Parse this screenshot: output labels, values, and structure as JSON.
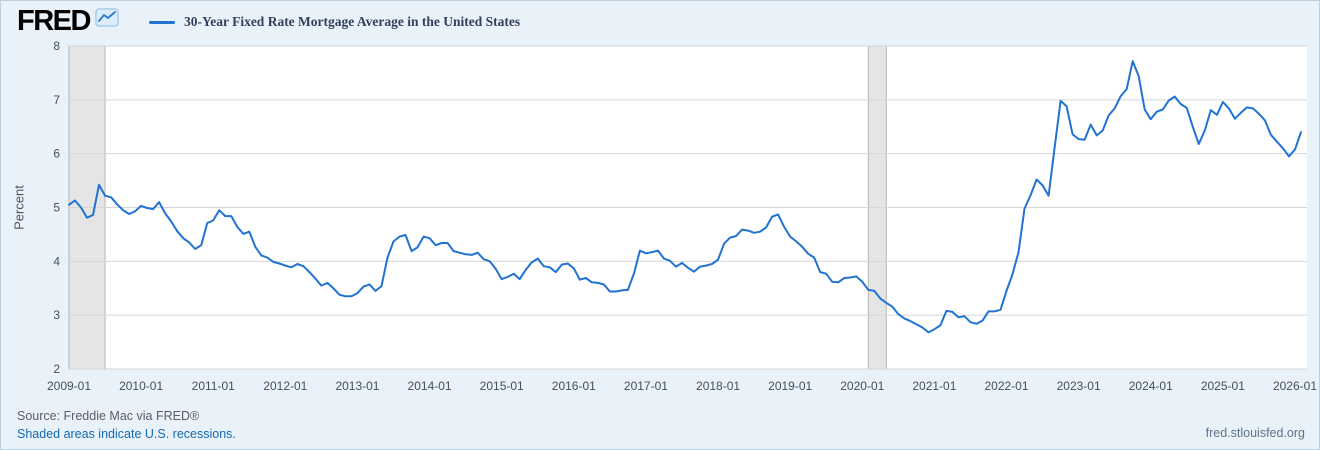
{
  "header": {
    "logo_text": "FRED",
    "logo_icon": "line-chart-icon"
  },
  "chart_data": {
    "type": "line",
    "title": "30-Year Fixed Rate Mortgage Average in the United States",
    "ylabel": "Percent",
    "xlabel": "",
    "ylim": [
      2,
      8
    ],
    "y_ticks": [
      2,
      3,
      4,
      5,
      6,
      7,
      8
    ],
    "x_ticks": [
      "2009-01",
      "2010-01",
      "2011-01",
      "2012-01",
      "2013-01",
      "2014-01",
      "2015-01",
      "2016-01",
      "2017-01",
      "2018-01",
      "2019-01",
      "2020-01",
      "2021-01",
      "2022-01",
      "2023-01",
      "2024-01",
      "2025-01",
      "2026-01"
    ],
    "x_domain": [
      "2009-01",
      "2026-03"
    ],
    "grid": "horizontal",
    "legend_position": "top",
    "line_color": "#2273d1",
    "grid_color": "#d6d6d6",
    "plot_bg": "#ffffff",
    "band_color": "#e5e5e5",
    "band_border": "#b5b5b5",
    "recession_bands": [
      [
        "2009-01",
        "2009-07"
      ],
      [
        "2020-02",
        "2020-05"
      ]
    ],
    "series": [
      {
        "name": "30-Year Fixed Rate Mortgage Average in the United States",
        "unit": "Percent",
        "frequency": "monthly",
        "start": "2009-01",
        "values": [
          5.05,
          5.13,
          5.0,
          4.81,
          4.86,
          5.42,
          5.22,
          5.19,
          5.06,
          4.95,
          4.88,
          4.93,
          5.03,
          4.99,
          4.97,
          5.1,
          4.89,
          4.74,
          4.56,
          4.43,
          4.35,
          4.23,
          4.3,
          4.71,
          4.76,
          4.95,
          4.84,
          4.84,
          4.64,
          4.51,
          4.55,
          4.27,
          4.11,
          4.07,
          3.99,
          3.96,
          3.92,
          3.89,
          3.95,
          3.91,
          3.8,
          3.68,
          3.55,
          3.6,
          3.5,
          3.38,
          3.35,
          3.35,
          3.41,
          3.53,
          3.57,
          3.45,
          3.54,
          4.07,
          4.37,
          4.46,
          4.49,
          4.19,
          4.26,
          4.46,
          4.43,
          4.3,
          4.34,
          4.34,
          4.19,
          4.16,
          4.13,
          4.12,
          4.16,
          4.04,
          4.0,
          3.86,
          3.67,
          3.71,
          3.77,
          3.67,
          3.84,
          3.98,
          4.05,
          3.91,
          3.89,
          3.8,
          3.94,
          3.96,
          3.87,
          3.66,
          3.69,
          3.61,
          3.6,
          3.57,
          3.44,
          3.44,
          3.46,
          3.47,
          3.77,
          4.2,
          4.15,
          4.17,
          4.2,
          4.05,
          4.01,
          3.9,
          3.97,
          3.88,
          3.81,
          3.9,
          3.92,
          3.95,
          4.03,
          4.33,
          4.44,
          4.47,
          4.59,
          4.57,
          4.53,
          4.55,
          4.63,
          4.83,
          4.87,
          4.64,
          4.46,
          4.37,
          4.27,
          4.14,
          4.07,
          3.8,
          3.77,
          3.62,
          3.61,
          3.69,
          3.7,
          3.72,
          3.62,
          3.47,
          3.45,
          3.31,
          3.23,
          3.16,
          3.02,
          2.94,
          2.89,
          2.83,
          2.77,
          2.68,
          2.74,
          2.81,
          3.08,
          3.06,
          2.96,
          2.98,
          2.87,
          2.84,
          2.9,
          3.07,
          3.07,
          3.1,
          3.45,
          3.76,
          4.17,
          4.98,
          5.23,
          5.52,
          5.41,
          5.22,
          6.11,
          6.98,
          6.88,
          6.36,
          6.27,
          6.26,
          6.54,
          6.34,
          6.43,
          6.71,
          6.84,
          7.07,
          7.2,
          7.72,
          7.44,
          6.82,
          6.64,
          6.78,
          6.82,
          6.99,
          7.06,
          6.92,
          6.85,
          6.5,
          6.18,
          6.43,
          6.81,
          6.72,
          6.96,
          6.84,
          6.65,
          6.76,
          6.86,
          6.84,
          6.74,
          6.62,
          6.35,
          6.22,
          6.1,
          5.95,
          6.08,
          6.4
        ]
      }
    ]
  },
  "footer": {
    "source": "Source: Freddie Mac via FRED®",
    "recession_note": "Shaded areas indicate U.S. recessions.",
    "site_url": "fred.stlouisfed.org"
  }
}
